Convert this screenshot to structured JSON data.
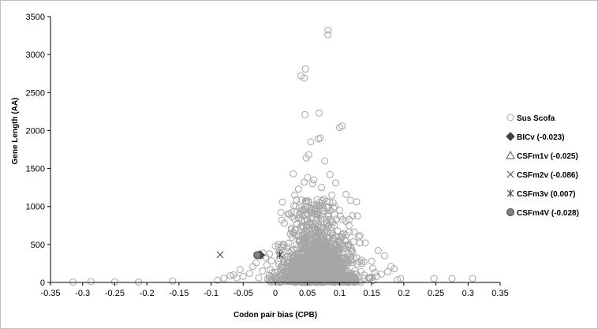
{
  "chart_data": {
    "type": "scatter",
    "xlabel": "Codon pair bias (CPB)",
    "ylabel": "Gene Length (AA)",
    "xlim": [
      -0.35,
      0.35
    ],
    "ylim": [
      0,
      3500
    ],
    "x_ticks": [
      "-0.35",
      "-0.3",
      "-0.25",
      "-0.2",
      "-0.15",
      "-0.1",
      "-0.05",
      "0",
      "0.05",
      "0.1",
      "0.15",
      "0.2",
      "0.25",
      "0.3",
      "0.35"
    ],
    "y_ticks": [
      "0",
      "500",
      "1000",
      "1500",
      "2000",
      "2500",
      "3000",
      "3500"
    ],
    "grid": false,
    "legend_position": "right",
    "background_cloud": {
      "series": "Sus Scofa",
      "center_x": 0.065,
      "x_spread": 0.03,
      "y_mean": 380,
      "count": 1300,
      "seed": 7
    },
    "series": [
      {
        "name": "Sus Scofa",
        "marker": "open-circle",
        "color": "#a6a6a6",
        "points": [
          [
            -0.315,
            5
          ],
          [
            -0.287,
            12
          ],
          [
            -0.25,
            8
          ],
          [
            -0.213,
            6
          ],
          [
            -0.16,
            18
          ],
          [
            0.19,
            35
          ],
          [
            0.195,
            50
          ],
          [
            0.247,
            50
          ],
          [
            0.275,
            52
          ],
          [
            0.307,
            52
          ],
          [
            0.082,
            3320
          ],
          [
            0.082,
            3260
          ],
          [
            0.047,
            2810
          ],
          [
            0.04,
            2720
          ],
          [
            0.045,
            2690
          ],
          [
            0.068,
            2230
          ],
          [
            0.046,
            2210
          ],
          [
            0.1,
            2040
          ],
          [
            0.104,
            2060
          ],
          [
            0.07,
            1900
          ],
          [
            0.067,
            1890
          ],
          [
            0.055,
            1850
          ],
          [
            0.052,
            1680
          ],
          [
            0.048,
            1640
          ],
          [
            0.077,
            1600
          ],
          [
            0.028,
            1430
          ],
          [
            0.085,
            1420
          ],
          [
            0.05,
            1380
          ],
          [
            0.06,
            1350
          ],
          [
            0.045,
            1320
          ],
          [
            0.058,
            1300
          ],
          [
            0.094,
            1310
          ],
          [
            0.036,
            1230
          ],
          [
            0.072,
            1250
          ],
          [
            0.11,
            1160
          ],
          [
            0.088,
            1150
          ],
          [
            0.03,
            1150
          ],
          [
            0.065,
            1090
          ],
          [
            0.08,
            1070
          ],
          [
            0.09,
            1050
          ],
          [
            0.07,
            1010
          ],
          [
            0.05,
            1000
          ],
          [
            0.1,
            950
          ],
          [
            0.02,
            900
          ],
          [
            0.12,
            880
          ],
          [
            0.115,
            830
          ],
          [
            0.01,
            820
          ],
          [
            0.13,
            600
          ],
          [
            0.14,
            520
          ],
          [
            0.16,
            420
          ],
          [
            0.17,
            350
          ],
          [
            0.18,
            210
          ],
          [
            0.185,
            180
          ],
          [
            0.175,
            140
          ],
          [
            0.165,
            110
          ],
          [
            0.158,
            80
          ],
          [
            -0.04,
            120
          ],
          [
            -0.05,
            80
          ],
          [
            -0.06,
            60
          ],
          [
            -0.065,
            100
          ],
          [
            -0.055,
            170
          ],
          [
            -0.07,
            90
          ],
          [
            -0.08,
            55
          ],
          [
            -0.09,
            30
          ],
          [
            -0.035,
            210
          ],
          [
            -0.03,
            260
          ],
          [
            -0.02,
            150
          ],
          [
            -0.01,
            90
          ],
          [
            0.0,
            480
          ],
          [
            0.005,
            500
          ],
          [
            -0.015,
            330
          ],
          [
            0.145,
            60
          ],
          [
            0.15,
            280
          ],
          [
            0.155,
            130
          ]
        ]
      },
      {
        "name": "BICv (-0.023)",
        "marker": "filled-diamond",
        "color": "#404040",
        "points": [
          [
            -0.023,
            360
          ]
        ]
      },
      {
        "name": "CSFm1v (-0.025)",
        "marker": "open-triangle",
        "color": "#595959",
        "points": [
          [
            -0.025,
            365
          ]
        ]
      },
      {
        "name": "CSFm2v (-0.086)",
        "marker": "x",
        "color": "#595959",
        "points": [
          [
            -0.086,
            365
          ]
        ]
      },
      {
        "name": "CSFm3v (0.007)",
        "marker": "star",
        "color": "#404040",
        "points": [
          [
            0.007,
            365
          ]
        ]
      },
      {
        "name": "CSFm4V (-0.028)",
        "marker": "filled-circle",
        "color": "#808080",
        "points": [
          [
            -0.028,
            360
          ]
        ]
      }
    ]
  }
}
